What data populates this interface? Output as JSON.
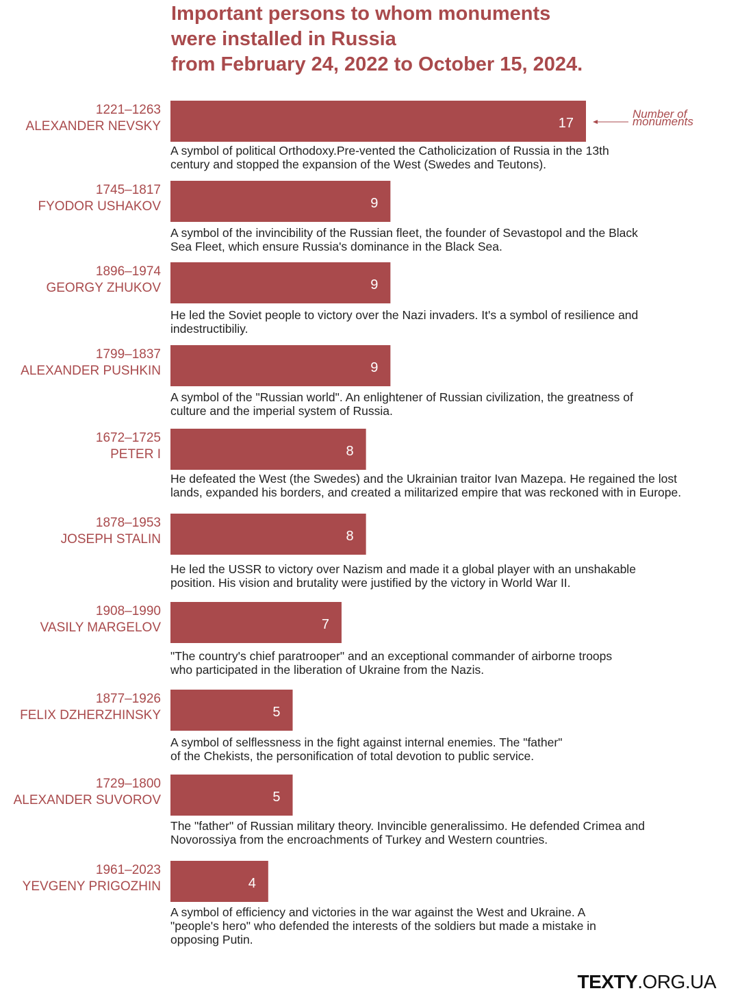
{
  "title_lines": [
    "Important persons to whom monuments",
    "were installed in Russia",
    "from February 24, 2022 to October 15, 2024."
  ],
  "annotation": [
    "Number of",
    "monuments"
  ],
  "footer": {
    "bold": "TEXTY",
    "light": ".ORG.UA"
  },
  "colors": {
    "bar": "#a94a4c",
    "accent_text": "#a94a4c",
    "body_text": "#222222",
    "background": "#ffffff"
  },
  "chart_data": {
    "type": "bar",
    "orientation": "horizontal",
    "title": "Important persons to whom monuments were installed in Russia from February 24, 2022 to October 15, 2024.",
    "value_label": "Number of monuments",
    "xlim": [
      0,
      17
    ],
    "grid": false,
    "persons": [
      {
        "years": "1221–1263",
        "name": "ALEXANDER NEVSKY",
        "value": 17,
        "desc": [
          "A symbol of political Orthodoxy.Pre-vented the Catholicization of Russia in the 13th",
          "century and stopped the expansion of the West (Swedes and Teutons)."
        ]
      },
      {
        "years": "1745–1817",
        "name": "FYODOR USHAKOV",
        "value": 9,
        "desc": [
          "A symbol of the invincibility of the Russian fleet, the founder of Sevastopol and the Black",
          "Sea Fleet, which ensure Russia's dominance in the Black Sea."
        ]
      },
      {
        "years": "1896–1974",
        "name": "GEORGY ZHUKOV",
        "value": 9,
        "desc": [
          "He led the Soviet people to victory over the Nazi invaders. It's a symbol of resilience and",
          "indestructibiliy."
        ]
      },
      {
        "years": "1799–1837",
        "name": "ALEXANDER PUSHKIN",
        "value": 9,
        "desc": [
          "A symbol of the \"Russian world\". An enlightener of Russian civilization, the greatness of",
          "culture and the imperial system of Russia."
        ]
      },
      {
        "years": "1672–1725",
        "name": "PETER I",
        "value": 8,
        "desc": [
          "He defeated the West (the Swedes) and the Ukrainian traitor Ivan Mazepa. He regained the lost",
          "lands, expanded his borders, and created a militarized empire that was reckoned with in Europe."
        ]
      },
      {
        "years": "1878–1953",
        "name": "JOSEPH STALIN",
        "value": 8,
        "desc": [
          "He led the USSR to victory over Nazism and made it a global player with an unshakable",
          "position. His vision and brutality were justified by the victory in World War II."
        ]
      },
      {
        "years": "1908–1990",
        "name": "VASILY MARGELOV",
        "value": 7,
        "desc": [
          "\"The country's chief paratrooper\" and an exceptional commander of airborne troops",
          "who participated in the liberation of Ukraine from the Nazis."
        ]
      },
      {
        "years": "1877–1926",
        "name": "FELIX DZHERZHINSKY",
        "value": 5,
        "desc": [
          "A symbol of selflessness in the fight against internal enemies. The \"father\"",
          "of the Chekists, the personification of total devotion to public service."
        ]
      },
      {
        "years": "1729–1800",
        "name": "ALEXANDER SUVOROV",
        "value": 5,
        "desc": [
          "The \"father\" of Russian military theory. Invincible generalissimo. He defended Crimea and",
          "Novorossiya from the encroachments of Turkey and Western countries."
        ]
      },
      {
        "years": "1961–2023",
        "name": "YEVGENY PRIGOZHIN",
        "value": 4,
        "desc": [
          "A symbol of efficiency and victories in the war against the West and Ukraine. A",
          "\"people's hero\" who defended the interests of the soldiers but made a mistake in",
          "opposing Putin."
        ]
      }
    ]
  }
}
